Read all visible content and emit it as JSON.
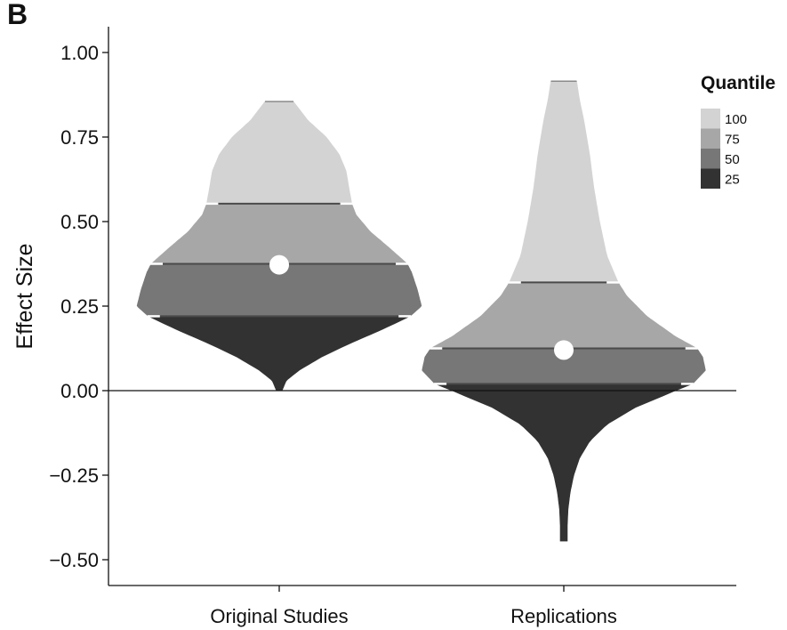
{
  "panel_label": "B",
  "chart_data": {
    "type": "violin",
    "title": "",
    "xlabel": "",
    "ylabel": "Effect Size",
    "ylim": [
      -0.58,
      1.07
    ],
    "yticks": [
      {
        "value": 1.0,
        "label": "1.00"
      },
      {
        "value": 0.75,
        "label": "0.75"
      },
      {
        "value": 0.5,
        "label": "0.50"
      },
      {
        "value": 0.25,
        "label": "0.25"
      },
      {
        "value": 0.0,
        "label": "0.00"
      },
      {
        "value": -0.25,
        "label": "−0.25"
      },
      {
        "value": -0.5,
        "label": "−0.50"
      }
    ],
    "reference_line": 0.0,
    "grid": false,
    "legend": {
      "title": "Quantile",
      "placement": "right",
      "entries": [
        {
          "label": "100",
          "color": "#d3d3d3"
        },
        {
          "label": "75",
          "color": "#a7a7a7"
        },
        {
          "label": "50",
          "color": "#777777"
        },
        {
          "label": "25",
          "color": "#323232"
        }
      ]
    },
    "groups": [
      {
        "name": "Original Studies",
        "min": 0.0,
        "max": 0.855,
        "quartiles": [
          0.22,
          0.375,
          0.553
        ],
        "mean": 0.372,
        "density": [
          [
            0.0,
            0.02
          ],
          [
            0.03,
            0.05
          ],
          [
            0.06,
            0.14
          ],
          [
            0.1,
            0.3
          ],
          [
            0.14,
            0.5
          ],
          [
            0.18,
            0.72
          ],
          [
            0.22,
            0.92
          ],
          [
            0.25,
            1.0
          ],
          [
            0.3,
            0.97
          ],
          [
            0.35,
            0.93
          ],
          [
            0.375,
            0.9
          ],
          [
            0.42,
            0.78
          ],
          [
            0.47,
            0.64
          ],
          [
            0.52,
            0.54
          ],
          [
            0.553,
            0.51
          ],
          [
            0.6,
            0.49
          ],
          [
            0.65,
            0.47
          ],
          [
            0.7,
            0.42
          ],
          [
            0.75,
            0.33
          ],
          [
            0.8,
            0.2
          ],
          [
            0.855,
            0.1
          ]
        ]
      },
      {
        "name": "Replications",
        "min": -0.445,
        "max": 0.915,
        "quartiles": [
          0.02,
          0.125,
          0.32
        ],
        "mean": 0.12,
        "density": [
          [
            -0.445,
            0.025
          ],
          [
            -0.4,
            0.025
          ],
          [
            -0.35,
            0.03
          ],
          [
            -0.3,
            0.045
          ],
          [
            -0.25,
            0.07
          ],
          [
            -0.2,
            0.11
          ],
          [
            -0.15,
            0.18
          ],
          [
            -0.1,
            0.3
          ],
          [
            -0.05,
            0.5
          ],
          [
            0.0,
            0.78
          ],
          [
            0.02,
            0.9
          ],
          [
            0.06,
            0.99
          ],
          [
            0.1,
            0.97
          ],
          [
            0.125,
            0.93
          ],
          [
            0.16,
            0.78
          ],
          [
            0.22,
            0.58
          ],
          [
            0.28,
            0.44
          ],
          [
            0.32,
            0.38
          ],
          [
            0.4,
            0.3
          ],
          [
            0.5,
            0.25
          ],
          [
            0.6,
            0.21
          ],
          [
            0.7,
            0.18
          ],
          [
            0.8,
            0.14
          ],
          [
            0.86,
            0.11
          ],
          [
            0.915,
            0.09
          ]
        ]
      }
    ]
  }
}
